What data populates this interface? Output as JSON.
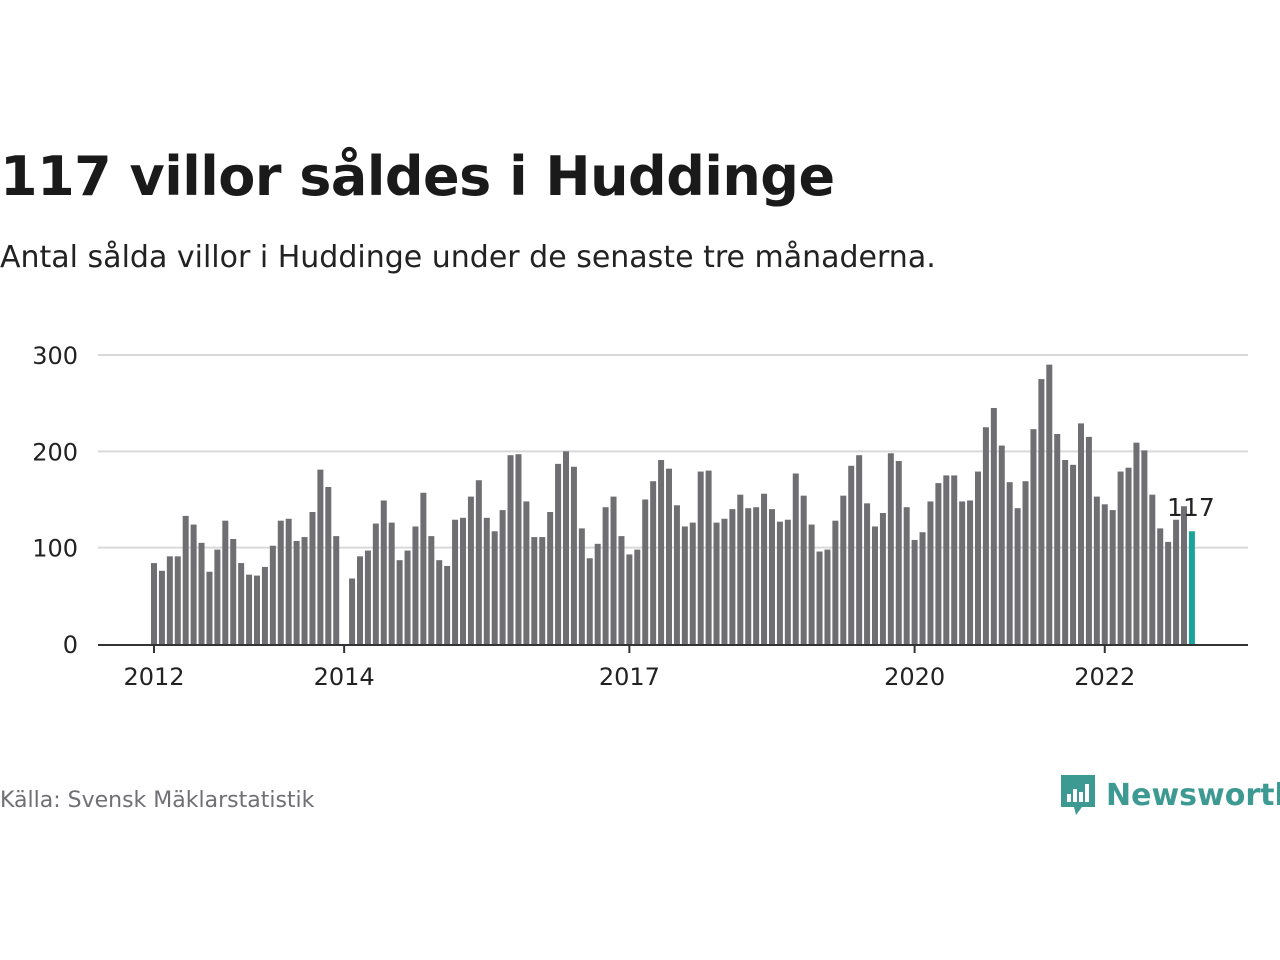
{
  "header": {
    "title": "117 villor såldes i Huddinge",
    "subtitle": "Antal sålda villor i Huddinge under de senaste tre månaderna."
  },
  "footer": {
    "source": "Källa: Svensk Mäklarstatistik",
    "brand": "Newsworthy",
    "brand_icon": "newsworthy-logo-icon",
    "brand_color": "#3d9a92"
  },
  "colors": {
    "bar": "#6f6e73",
    "highlight": "#1aa39b",
    "grid": "#d9d9d9",
    "axis": "#333333",
    "text": "#222222"
  },
  "chart_data": {
    "type": "bar",
    "title": "117 villor såldes i Huddinge",
    "subtitle": "Antal sålda villor i Huddinge under de senaste tre månaderna.",
    "x_tick_labels": [
      "2012",
      "2014",
      "2017",
      "2020",
      "2022"
    ],
    "y_ticks": [
      0,
      100,
      200,
      300
    ],
    "ylim": [
      0,
      300
    ],
    "grid": true,
    "highlight_label": "117",
    "series": [
      {
        "values": [
          84,
          76,
          91,
          91,
          133,
          124,
          105,
          75,
          98,
          128,
          109,
          84,
          72,
          71,
          80,
          102,
          128,
          130,
          107,
          111,
          137,
          181,
          163,
          112,
          null,
          68,
          91,
          97,
          125,
          149,
          126,
          87,
          97,
          122,
          157,
          112,
          87,
          81,
          129,
          131,
          153,
          170,
          131,
          117,
          139,
          196,
          197,
          148,
          111,
          111,
          137,
          187,
          200,
          184,
          120,
          89,
          104,
          142,
          153,
          112,
          93,
          98,
          150,
          169,
          191,
          182,
          144,
          122,
          126,
          179,
          180,
          126,
          130,
          140,
          155,
          141,
          142,
          156,
          140,
          127,
          129,
          177,
          154,
          124,
          96,
          98,
          128,
          154,
          185,
          196,
          146,
          122,
          136,
          198,
          190,
          142,
          108,
          116,
          148,
          167,
          175,
          175,
          148,
          149,
          179,
          225,
          245,
          206,
          168,
          141,
          169,
          223,
          275,
          290,
          218,
          191,
          186,
          229,
          215,
          153,
          145,
          139,
          179,
          183,
          209,
          201,
          155,
          120,
          106,
          129,
          143,
          117
        ]
      }
    ]
  }
}
